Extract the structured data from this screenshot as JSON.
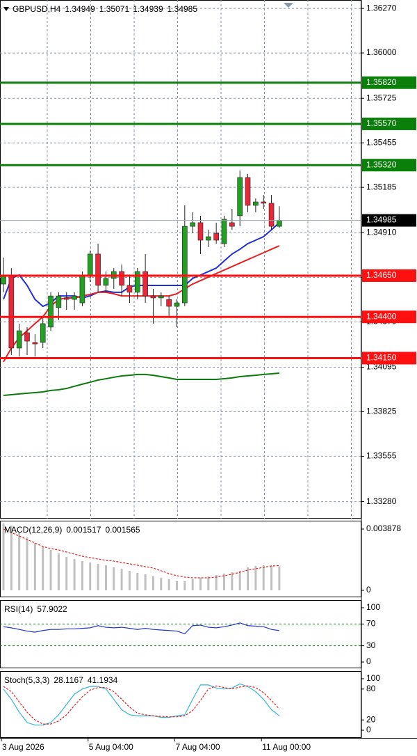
{
  "chart_data": [
    {
      "type": "candlestick",
      "title": "GBPUSD,H4",
      "categories": [
        "3 Aug 2026",
        null,
        null,
        null,
        null,
        null,
        null,
        null,
        null,
        null,
        null,
        "5 Aug 04:00",
        null,
        null,
        null,
        null,
        null,
        null,
        null,
        null,
        null,
        null,
        "7 Aug 04:00",
        null,
        null,
        null,
        null,
        null,
        null,
        null,
        null,
        null,
        null,
        "11 Aug 00:00",
        null,
        null
      ],
      "open": [
        1.34599,
        1.34654,
        1.34211,
        1.34304,
        1.34245,
        1.34245,
        1.34338,
        1.34456,
        1.34515,
        1.34506,
        1.34485,
        1.34654,
        1.34781,
        1.34591,
        1.34633,
        1.34675,
        1.34591,
        1.34549,
        1.34675,
        1.34527,
        1.34515,
        1.34506,
        1.34464,
        1.34485,
        1.34949,
        1.34971,
        1.34865,
        1.34907,
        1.34844,
        1.34971,
        1.35013,
        1.35245,
        1.35076,
        1.35097,
        1.35089,
        1.34949
      ],
      "high": [
        1.3476,
        1.34696,
        1.34359,
        1.34338,
        1.34295,
        1.34401,
        1.34549,
        1.34549,
        1.34549,
        1.34549,
        1.34675,
        1.34802,
        1.34844,
        1.34675,
        1.34696,
        1.34717,
        1.34654,
        1.34696,
        1.34781,
        1.3457,
        1.34549,
        1.34527,
        1.34506,
        1.35076,
        1.35034,
        1.35013,
        1.34928,
        1.34971,
        1.35013,
        1.35055,
        1.35287,
        1.35266,
        1.35118,
        1.35139,
        1.35139,
        1.35071
      ],
      "low": [
        1.34549,
        1.34169,
        1.3416,
        1.34169,
        1.3416,
        1.34211,
        1.34316,
        1.3438,
        1.34443,
        1.34443,
        1.34464,
        1.34612,
        1.34549,
        1.34549,
        1.3457,
        1.34527,
        1.34485,
        1.34506,
        1.34485,
        1.34359,
        1.34464,
        1.34401,
        1.34338,
        1.34464,
        1.34907,
        1.34781,
        1.34823,
        1.34844,
        1.34823,
        1.34928,
        1.34949,
        1.35034,
        1.35034,
        1.35055,
        1.34928,
        1.34939
      ],
      "close": [
        1.34654,
        1.34211,
        1.34316,
        1.34253,
        1.34236,
        1.34359,
        1.34527,
        1.34527,
        1.34506,
        1.34527,
        1.34654,
        1.34781,
        1.34591,
        1.34633,
        1.34675,
        1.34591,
        1.34549,
        1.34675,
        1.34527,
        1.34515,
        1.34527,
        1.34464,
        1.34485,
        1.34949,
        1.34971,
        1.34865,
        1.34886,
        1.34865,
        1.34992,
        1.34949,
        1.35245,
        1.35076,
        1.35097,
        1.35089,
        1.34949,
        1.34985
      ],
      "up_color": "#22a022",
      "down_color": "#e8283a",
      "series": [
        {
          "color": "#1f2fd6",
          "values": [
            1.34506,
            1.34633,
            1.34654,
            1.34591,
            1.34506,
            1.34464,
            1.34485,
            1.34527,
            1.34527,
            1.34527,
            1.34515,
            1.34527,
            1.34549,
            1.34557,
            1.34549,
            1.34549,
            1.34582,
            1.34591,
            1.34591,
            1.34591,
            1.34591,
            1.34591,
            1.34591,
            1.34591,
            1.34633,
            1.34654,
            1.34675,
            1.34696,
            1.34739,
            1.34781,
            1.3481,
            1.34844,
            1.34865,
            1.34886,
            1.34928,
            1.34971
          ]
        },
        {
          "color": "#e82020",
          "values": [
            1.34127,
            1.34211,
            1.34274,
            1.34316,
            1.34359,
            1.34401,
            1.34464,
            1.34506,
            1.34515,
            1.34515,
            1.34527,
            1.34536,
            1.34549,
            1.34549,
            1.3454,
            1.34527,
            1.34527,
            1.34527,
            1.34527,
            1.34527,
            1.34527,
            1.34527,
            1.3454,
            1.3457,
            1.34599,
            1.3462,
            1.34641,
            1.34663,
            1.34684,
            1.34705,
            1.34726,
            1.34747,
            1.34768,
            1.34789,
            1.3481,
            1.34831
          ]
        },
        {
          "color": "#0a7a0a",
          "values": [
            1.33924,
            1.33928,
            1.33933,
            1.33937,
            1.33941,
            1.33945,
            1.33954,
            1.33958,
            1.33966,
            1.33979,
            1.33992,
            1.34004,
            1.34017,
            1.34025,
            1.34034,
            1.34042,
            1.34046,
            1.34051,
            1.34051,
            1.34046,
            1.34038,
            1.3403,
            1.34021,
            1.34021,
            1.34021,
            1.34021,
            1.34021,
            1.34021,
            1.34025,
            1.3403,
            1.34038,
            1.34042,
            1.34046,
            1.34051,
            1.34055,
            1.34059
          ]
        }
      ],
      "levels": [
        {
          "value": 1.3582,
          "label": "1.35820",
          "color": "#0a7f0a"
        },
        {
          "value": 1.3557,
          "label": "1.35570",
          "color": "#0a7f0a"
        },
        {
          "value": 1.3532,
          "label": "1.35320",
          "color": "#0a7f0a"
        },
        {
          "value": 1.3465,
          "label": "1.34650",
          "color": "#ff1010"
        },
        {
          "value": 1.344,
          "label": "1.34400",
          "color": "#ff1010"
        },
        {
          "value": 1.3415,
          "label": "1.34150",
          "color": "#ff1010"
        }
      ],
      "ylim": [
        1.33177,
        1.36321
      ],
      "yticks": [
        {
          "value": 1.3627,
          "label": "1.36270"
        },
        {
          "value": 1.36,
          "label": "1.36000"
        },
        {
          "value": 1.35725,
          "label": "1.35725"
        },
        {
          "value": 1.35455,
          "label": "1.35455"
        },
        {
          "value": 1.35185,
          "label": "1.35185"
        },
        {
          "value": 1.3491,
          "label": "1.34910"
        },
        {
          "value": 1.3464,
          "label": "1.34640"
        },
        {
          "value": 1.3437,
          "label": "1.34370"
        },
        {
          "value": 1.34095,
          "label": "1.34095"
        },
        {
          "value": 1.33825,
          "label": "1.33825"
        },
        {
          "value": 1.33555,
          "label": "1.33555"
        },
        {
          "value": 1.3328,
          "label": "1.33280"
        }
      ],
      "grid": true
    },
    {
      "type": "bar",
      "title": "MACD(12,26,9)",
      "series": [
        {
          "style": "bar",
          "color": "#c0c0c0",
          "values": [
            0.004231,
            0.004099,
            0.003658,
            0.003349,
            0.002997,
            0.002776,
            0.002556,
            0.002336,
            0.002115,
            0.001983,
            0.001851,
            0.001763,
            0.001675,
            0.001587,
            0.001454,
            0.001366,
            0.001234,
            0.001102,
            0.001014,
            0.000881,
            0.000793,
            0.000705,
            0.000573,
            0.000573,
            0.000705,
            0.000793,
            0.000881,
            0.00097,
            0.001058,
            0.001146,
            0.001234,
            0.001454,
            0.001542,
            0.001587,
            0.001542,
            0.001517
          ]
        },
        {
          "style": "dashed",
          "color": "#e82020",
          "values": [
            0.003878,
            0.003658,
            0.003437,
            0.003217,
            0.002997,
            0.002776,
            0.002644,
            0.002556,
            0.002424,
            0.002292,
            0.002159,
            0.002071,
            0.001983,
            0.001895,
            0.001851,
            0.001763,
            0.001675,
            0.001587,
            0.001498,
            0.00141,
            0.001234,
            0.001058,
            0.000925,
            0.000837,
            0.000793,
            0.000793,
            0.000793,
            0.000837,
            0.000925,
            0.001014,
            0.001146,
            0.001278,
            0.001366,
            0.001454,
            0.001542,
            0.001565
          ]
        }
      ],
      "ylim": [
        -0.000441,
        0.004407
      ],
      "yticks": [
        0.003878,
        0
      ]
    },
    {
      "type": "line",
      "title": "RSI(14)",
      "series": [
        {
          "style": "solid",
          "color": "#2233cc",
          "values": [
            65,
            63,
            60,
            57,
            55,
            58,
            60,
            60,
            61,
            61,
            62,
            63,
            67,
            64,
            63,
            64,
            62,
            60,
            62,
            60,
            59,
            58,
            57,
            52,
            67,
            68,
            64,
            63,
            65,
            68,
            72,
            67,
            66,
            65,
            60,
            57.9022
          ]
        }
      ],
      "levels": [
        70,
        30
      ],
      "level_color": "#0a8a0a",
      "ylim": [
        -11.5,
        114.1
      ],
      "yticks": [
        100,
        70,
        30,
        0
      ]
    },
    {
      "type": "line",
      "title": "Stoch(5,3,3)",
      "series": [
        {
          "style": "solid",
          "color": "#33b5d6",
          "values": [
            80,
            60,
            35,
            15,
            10,
            10,
            15,
            30,
            50,
            70,
            80,
            85,
            85,
            80,
            60,
            40,
            30,
            28,
            28,
            28,
            25,
            25,
            28,
            30,
            60,
            88,
            88,
            82,
            80,
            82,
            90,
            85,
            75,
            60,
            40,
            28.1167
          ]
        },
        {
          "style": "dashed",
          "color": "#e82020",
          "values": [
            85,
            75,
            55,
            35,
            20,
            12,
            12,
            18,
            30,
            48,
            65,
            78,
            83,
            83,
            75,
            60,
            45,
            33,
            30,
            28,
            27,
            26,
            26,
            28,
            38,
            58,
            80,
            86,
            83,
            80,
            84,
            86,
            83,
            73,
            58,
            41.1934
          ]
        }
      ],
      "ylim": [
        -14.9,
        114.9
      ],
      "yticks": [
        100,
        80,
        20,
        0
      ]
    }
  ]
}
